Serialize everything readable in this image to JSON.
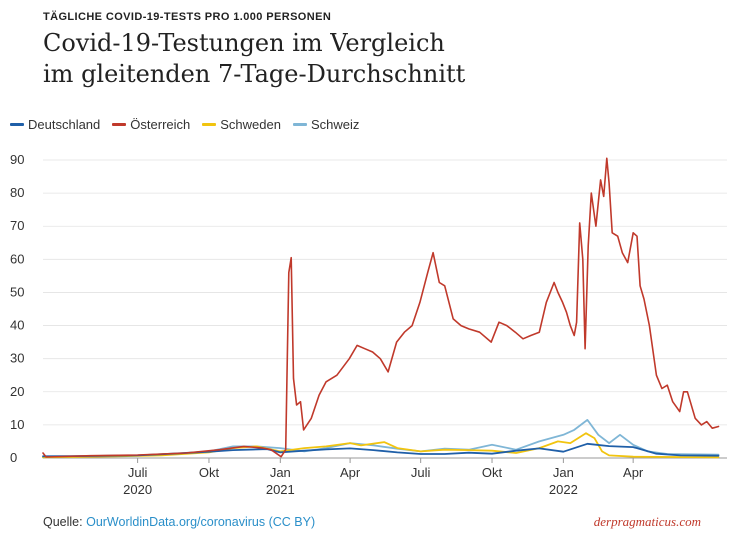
{
  "header": {
    "kicker": "TÄGLICHE COVID-19-TESTS PRO 1.000 PERSONEN",
    "title_line1": "Covid-19-Testungen im Vergleich",
    "title_line2": "im gleitenden 7-Tage-Durchschnitt"
  },
  "footer": {
    "source_label": "Quelle: ",
    "source_link": "OurWorldinData.org/coronavirus (CC BY)",
    "brand": "derpragmaticus.com"
  },
  "chart_data": {
    "type": "line",
    "title": "Covid-19-Testungen im Vergleich im gleitenden 7-Tage-Durchschnitt",
    "xlabel": "",
    "ylabel": "",
    "xlim": [
      "2020-03-01",
      "2022-07-31"
    ],
    "ylim": [
      0,
      90
    ],
    "yticks": [
      0,
      10,
      20,
      30,
      40,
      50,
      60,
      70,
      80,
      90
    ],
    "xticks": [
      {
        "date": "2020-07-01",
        "label": "Juli",
        "year": "2020"
      },
      {
        "date": "2020-10-01",
        "label": "Okt",
        "year": ""
      },
      {
        "date": "2021-01-01",
        "label": "Jan",
        "year": "2021"
      },
      {
        "date": "2021-04-01",
        "label": "Apr",
        "year": ""
      },
      {
        "date": "2021-07-01",
        "label": "Juli",
        "year": ""
      },
      {
        "date": "2021-10-01",
        "label": "Okt",
        "year": ""
      },
      {
        "date": "2022-01-01",
        "label": "Jan",
        "year": "2022"
      },
      {
        "date": "2022-04-01",
        "label": "Apr",
        "year": ""
      }
    ],
    "grid": true,
    "legend_position": "top-left",
    "series": [
      {
        "name": "Deutschland",
        "color": "#1f5fa8",
        "points": [
          [
            "2020-03-01",
            0.5
          ],
          [
            "2020-05-01",
            0.6
          ],
          [
            "2020-07-01",
            0.8
          ],
          [
            "2020-08-15",
            1.3
          ],
          [
            "2020-10-01",
            1.9
          ],
          [
            "2020-11-01",
            2.4
          ],
          [
            "2020-12-15",
            2.7
          ],
          [
            "2021-01-01",
            1.7
          ],
          [
            "2021-02-01",
            2.2
          ],
          [
            "2021-03-01",
            2.6
          ],
          [
            "2021-04-01",
            2.9
          ],
          [
            "2021-05-01",
            2.4
          ],
          [
            "2021-06-01",
            1.7
          ],
          [
            "2021-07-01",
            1.2
          ],
          [
            "2021-08-01",
            1.2
          ],
          [
            "2021-09-01",
            1.6
          ],
          [
            "2021-10-01",
            1.3
          ],
          [
            "2021-11-01",
            2.2
          ],
          [
            "2021-12-01",
            2.9
          ],
          [
            "2022-01-01",
            1.9
          ],
          [
            "2022-02-01",
            4.3
          ],
          [
            "2022-03-01",
            3.6
          ],
          [
            "2022-04-01",
            3.3
          ],
          [
            "2022-05-01",
            1.3
          ],
          [
            "2022-06-01",
            0.8
          ],
          [
            "2022-07-20",
            0.7
          ]
        ]
      },
      {
        "name": "Österreich",
        "color": "#c0392b",
        "points": [
          [
            "2020-03-01",
            1.5
          ],
          [
            "2020-03-05",
            0.3
          ],
          [
            "2020-05-01",
            0.7
          ],
          [
            "2020-07-01",
            0.9
          ],
          [
            "2020-09-01",
            1.5
          ],
          [
            "2020-10-15",
            2.5
          ],
          [
            "2020-11-15",
            3.5
          ],
          [
            "2020-12-10",
            3.0
          ],
          [
            "2020-12-20",
            2.5
          ],
          [
            "2021-01-02",
            0.4
          ],
          [
            "2021-01-08",
            2.5
          ],
          [
            "2021-01-12",
            56
          ],
          [
            "2021-01-15",
            60.5
          ],
          [
            "2021-01-18",
            24
          ],
          [
            "2021-01-22",
            16
          ],
          [
            "2021-01-27",
            17
          ],
          [
            "2021-01-31",
            8.5
          ],
          [
            "2021-02-10",
            12
          ],
          [
            "2021-02-20",
            19
          ],
          [
            "2021-03-01",
            23
          ],
          [
            "2021-03-15",
            25
          ],
          [
            "2021-03-31",
            30
          ],
          [
            "2021-04-10",
            34
          ],
          [
            "2021-04-20",
            33
          ],
          [
            "2021-04-30",
            32
          ],
          [
            "2021-05-10",
            30
          ],
          [
            "2021-05-20",
            26
          ],
          [
            "2021-05-31",
            35
          ],
          [
            "2021-06-10",
            38
          ],
          [
            "2021-06-20",
            40
          ],
          [
            "2021-06-30",
            47
          ],
          [
            "2021-07-10",
            56
          ],
          [
            "2021-07-17",
            62
          ],
          [
            "2021-07-25",
            53
          ],
          [
            "2021-08-01",
            52
          ],
          [
            "2021-08-12",
            42
          ],
          [
            "2021-08-22",
            40
          ],
          [
            "2021-09-01",
            39
          ],
          [
            "2021-09-15",
            38
          ],
          [
            "2021-09-30",
            35
          ],
          [
            "2021-10-10",
            41
          ],
          [
            "2021-10-20",
            40
          ],
          [
            "2021-10-31",
            38
          ],
          [
            "2021-11-10",
            36
          ],
          [
            "2021-11-20",
            37
          ],
          [
            "2021-12-01",
            38
          ],
          [
            "2021-12-10",
            47
          ],
          [
            "2021-12-20",
            53
          ],
          [
            "2021-12-25",
            50
          ],
          [
            "2021-12-31",
            47
          ],
          [
            "2022-01-05",
            44
          ],
          [
            "2022-01-10",
            40
          ],
          [
            "2022-01-15",
            37
          ],
          [
            "2022-01-18",
            41
          ],
          [
            "2022-01-22",
            71
          ],
          [
            "2022-01-26",
            60
          ],
          [
            "2022-01-29",
            33
          ],
          [
            "2022-02-02",
            64
          ],
          [
            "2022-02-06",
            80
          ],
          [
            "2022-02-12",
            70
          ],
          [
            "2022-02-18",
            84
          ],
          [
            "2022-02-22",
            79
          ],
          [
            "2022-02-26",
            90.5
          ],
          [
            "2022-03-01",
            83
          ],
          [
            "2022-03-05",
            68
          ],
          [
            "2022-03-12",
            67
          ],
          [
            "2022-03-18",
            62
          ],
          [
            "2022-03-25",
            59
          ],
          [
            "2022-04-01",
            68
          ],
          [
            "2022-04-06",
            67
          ],
          [
            "2022-04-10",
            52
          ],
          [
            "2022-04-15",
            48
          ],
          [
            "2022-04-22",
            40
          ],
          [
            "2022-05-01",
            25
          ],
          [
            "2022-05-08",
            21
          ],
          [
            "2022-05-15",
            22
          ],
          [
            "2022-05-22",
            17
          ],
          [
            "2022-05-31",
            14
          ],
          [
            "2022-06-05",
            20
          ],
          [
            "2022-06-10",
            20
          ],
          [
            "2022-06-20",
            12
          ],
          [
            "2022-06-28",
            10
          ],
          [
            "2022-07-05",
            11
          ],
          [
            "2022-07-12",
            9
          ],
          [
            "2022-07-20",
            9.5
          ]
        ]
      },
      {
        "name": "Schweden",
        "color": "#f1c40f",
        "points": [
          [
            "2020-03-01",
            0.2
          ],
          [
            "2020-06-01",
            0.5
          ],
          [
            "2020-08-01",
            0.8
          ],
          [
            "2020-10-01",
            1.7
          ],
          [
            "2020-11-01",
            3.0
          ],
          [
            "2020-12-01",
            3.5
          ],
          [
            "2021-01-01",
            2.0
          ],
          [
            "2021-02-01",
            3.0
          ],
          [
            "2021-03-01",
            3.5
          ],
          [
            "2021-04-01",
            4.5
          ],
          [
            "2021-04-15",
            3.8
          ],
          [
            "2021-05-15",
            4.8
          ],
          [
            "2021-06-01",
            3.0
          ],
          [
            "2021-07-01",
            2.0
          ],
          [
            "2021-08-01",
            2.5
          ],
          [
            "2021-09-01",
            2.4
          ],
          [
            "2021-10-01",
            2.2
          ],
          [
            "2021-11-01",
            1.5
          ],
          [
            "2021-12-01",
            3.0
          ],
          [
            "2021-12-25",
            5.0
          ],
          [
            "2022-01-10",
            4.5
          ],
          [
            "2022-01-30",
            7.5
          ],
          [
            "2022-02-10",
            6.0
          ],
          [
            "2022-02-20",
            2.0
          ],
          [
            "2022-03-01",
            0.8
          ],
          [
            "2022-04-01",
            0.4
          ],
          [
            "2022-07-20",
            0.2
          ]
        ]
      },
      {
        "name": "Schweiz",
        "color": "#7fb6d6",
        "points": [
          [
            "2020-03-01",
            0.2
          ],
          [
            "2020-06-01",
            0.6
          ],
          [
            "2020-08-01",
            0.9
          ],
          [
            "2020-10-01",
            2.0
          ],
          [
            "2020-11-01",
            3.5
          ],
          [
            "2020-12-01",
            3.5
          ],
          [
            "2021-01-01",
            3.0
          ],
          [
            "2021-02-01",
            2.0
          ],
          [
            "2021-03-01",
            3.0
          ],
          [
            "2021-04-01",
            4.5
          ],
          [
            "2021-05-01",
            3.8
          ],
          [
            "2021-06-01",
            2.8
          ],
          [
            "2021-07-01",
            2.0
          ],
          [
            "2021-08-01",
            2.8
          ],
          [
            "2021-09-01",
            2.5
          ],
          [
            "2021-10-01",
            4.0
          ],
          [
            "2021-11-01",
            2.5
          ],
          [
            "2021-12-01",
            5.0
          ],
          [
            "2022-01-01",
            7.0
          ],
          [
            "2022-01-15",
            8.5
          ],
          [
            "2022-02-01",
            11.5
          ],
          [
            "2022-02-15",
            7.0
          ],
          [
            "2022-03-01",
            4.5
          ],
          [
            "2022-03-15",
            7.0
          ],
          [
            "2022-04-01",
            4.0
          ],
          [
            "2022-04-20",
            2.0
          ],
          [
            "2022-05-15",
            1.2
          ],
          [
            "2022-07-20",
            1.0
          ]
        ]
      }
    ]
  }
}
